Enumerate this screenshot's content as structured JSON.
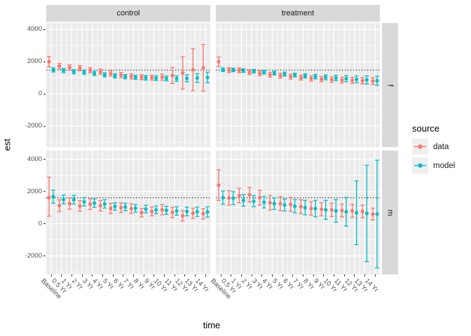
{
  "labels": {
    "y_title": "est",
    "x_title": "time"
  },
  "facets": {
    "cols": [
      "control",
      "treatment"
    ],
    "rows": [
      "f",
      "m"
    ]
  },
  "legend": {
    "title": "source",
    "items": [
      {
        "label": "data",
        "color": "#F8766D"
      },
      {
        "label": "model",
        "color": "#00BFC4"
      }
    ]
  },
  "chart_data": {
    "type": "scatter",
    "error_bars": true,
    "title": "",
    "xlabel": "time",
    "ylabel": "est",
    "legend_title": "source",
    "legend_position": "right",
    "grid": true,
    "x_categories": [
      "Baseline",
      "0.5 Yr",
      "1 Yr",
      "2 Yr",
      "3 Yr",
      "4 Yr",
      "5 Yr",
      "6 Yr",
      "7 Yr",
      "8 Yr",
      "9 Yr",
      "10 Yr",
      "11 Yr",
      "12 Yr",
      "13 Yr",
      "14 Yr"
    ],
    "y_major_ticks": [
      4000,
      2000,
      0,
      -2000
    ],
    "y_tick_labels": [
      "4000",
      "2000",
      "0",
      "-2000"
    ],
    "y_minor_ticks": [
      3000,
      1000,
      -1000,
      -3000
    ],
    "ylim_top_row": [
      -3300,
      4400
    ],
    "ylim_bottom_row": [
      -3150,
      4550
    ],
    "facet_panels": [
      {
        "col": "control",
        "row": "f",
        "hline_dotted": 1480,
        "series": [
          {
            "name": "data",
            "color": "#F8766D",
            "est": [
              2000,
              1730,
              1640,
              1600,
              1470,
              1380,
              1270,
              1170,
              1090,
              1040,
              1010,
              1040,
              1140,
              1300,
              1500,
              1620
            ],
            "lo": [
              1680,
              1560,
              1480,
              1440,
              1310,
              1220,
              1110,
              1010,
              930,
              890,
              860,
              850,
              640,
              300,
              190,
              170
            ],
            "hi": [
              2320,
              1900,
              1800,
              1760,
              1630,
              1540,
              1430,
              1330,
              1250,
              1190,
              1160,
              1230,
              1640,
              2300,
              2810,
              3070
            ]
          },
          {
            "name": "model",
            "color": "#00BFC4",
            "est": [
              1490,
              1450,
              1380,
              1350,
              1270,
              1180,
              1120,
              1070,
              1030,
              1000,
              980,
              960,
              950,
              970,
              990,
              1020
            ],
            "lo": [
              1360,
              1320,
              1250,
              1220,
              1140,
              1050,
              990,
              940,
              900,
              860,
              840,
              810,
              780,
              750,
              720,
              690
            ],
            "hi": [
              1620,
              1580,
              1510,
              1480,
              1400,
              1310,
              1250,
              1200,
              1160,
              1140,
              1120,
              1110,
              1120,
              1190,
              1260,
              1350
            ]
          }
        ]
      },
      {
        "col": "treatment",
        "row": "f",
        "hline_dotted": 1480,
        "series": [
          {
            "name": "data",
            "color": "#F8766D",
            "est": [
              2000,
              1480,
              1470,
              1360,
              1280,
              1190,
              1130,
              1070,
              1010,
              960,
              920,
              890,
              860,
              840,
              820,
              800
            ],
            "lo": [
              1710,
              1330,
              1320,
              1210,
              1130,
              1040,
              980,
              920,
              860,
              800,
              760,
              720,
              680,
              650,
              620,
              590
            ],
            "hi": [
              2290,
              1630,
              1620,
              1510,
              1430,
              1340,
              1280,
              1220,
              1160,
              1120,
              1080,
              1060,
              1040,
              1030,
              1020,
              1010
            ]
          },
          {
            "name": "model",
            "color": "#00BFC4",
            "est": [
              1500,
              1490,
              1450,
              1410,
              1350,
              1290,
              1230,
              1170,
              1120,
              1070,
              1030,
              990,
              950,
              910,
              870,
              820
            ],
            "lo": [
              1390,
              1380,
              1340,
              1300,
              1240,
              1180,
              1110,
              1050,
              990,
              930,
              880,
              820,
              760,
              700,
              620,
              540
            ],
            "hi": [
              1610,
              1600,
              1560,
              1520,
              1460,
              1400,
              1350,
              1290,
              1250,
              1210,
              1180,
              1160,
              1140,
              1120,
              1120,
              1100
            ]
          }
        ]
      },
      {
        "col": "control",
        "row": "m",
        "hline_dotted": 1610,
        "series": [
          {
            "name": "data",
            "color": "#F8766D",
            "est": [
              1620,
              1120,
              1250,
              1100,
              1220,
              1120,
              950,
              1000,
              940,
              690,
              760,
              870,
              700,
              490,
              650,
              620
            ],
            "lo": [
              470,
              760,
              900,
              770,
              890,
              790,
              630,
              700,
              640,
              420,
              490,
              550,
              380,
              170,
              330,
              300
            ],
            "hi": [
              2890,
              1480,
              1600,
              1430,
              1550,
              1450,
              1270,
              1300,
              1240,
              960,
              1030,
              1190,
              1020,
              810,
              970,
              940
            ]
          },
          {
            "name": "model",
            "color": "#00BFC4",
            "est": [
              1680,
              1510,
              1490,
              1360,
              1280,
              1230,
              1070,
              1040,
              960,
              910,
              860,
              830,
              790,
              760,
              740,
              730
            ],
            "lo": [
              1270,
              1240,
              1220,
              1100,
              1020,
              970,
              840,
              810,
              730,
              670,
              620,
              580,
              530,
              490,
              450,
              410
            ],
            "hi": [
              2090,
              1780,
              1760,
              1620,
              1540,
              1490,
              1300,
              1270,
              1190,
              1150,
              1100,
              1080,
              1050,
              1030,
              1030,
              1050
            ]
          }
        ]
      },
      {
        "col": "treatment",
        "row": "m",
        "hline_dotted": 1610,
        "series": [
          {
            "name": "data",
            "color": "#F8766D",
            "est": [
              2400,
              1600,
              1750,
              1800,
              1620,
              1300,
              1250,
              1200,
              1060,
              950,
              900,
              860,
              820,
              800,
              760,
              600
            ],
            "lo": [
              1450,
              1150,
              1300,
              1350,
              1160,
              850,
              810,
              770,
              630,
              530,
              490,
              450,
              420,
              400,
              370,
              230
            ],
            "hi": [
              3350,
              2050,
              2200,
              2250,
              2080,
              1750,
              1690,
              1630,
              1490,
              1370,
              1310,
              1270,
              1220,
              1200,
              1150,
              970
            ]
          },
          {
            "name": "model",
            "color": "#00BFC4",
            "est": [
              1620,
              1590,
              1450,
              1400,
              1340,
              1250,
              1160,
              1090,
              1000,
              940,
              860,
              800,
              740,
              680,
              640,
              600
            ],
            "lo": [
              1210,
              1190,
              1090,
              1050,
              980,
              890,
              790,
              680,
              550,
              430,
              270,
              100,
              -150,
              -1300,
              -2350,
              -2750
            ],
            "hi": [
              2030,
              1990,
              1810,
              1750,
              1700,
              1610,
              1530,
              1500,
              1450,
              1450,
              1450,
              1500,
              1630,
              2660,
              3630,
              3950
            ]
          }
        ]
      }
    ]
  }
}
